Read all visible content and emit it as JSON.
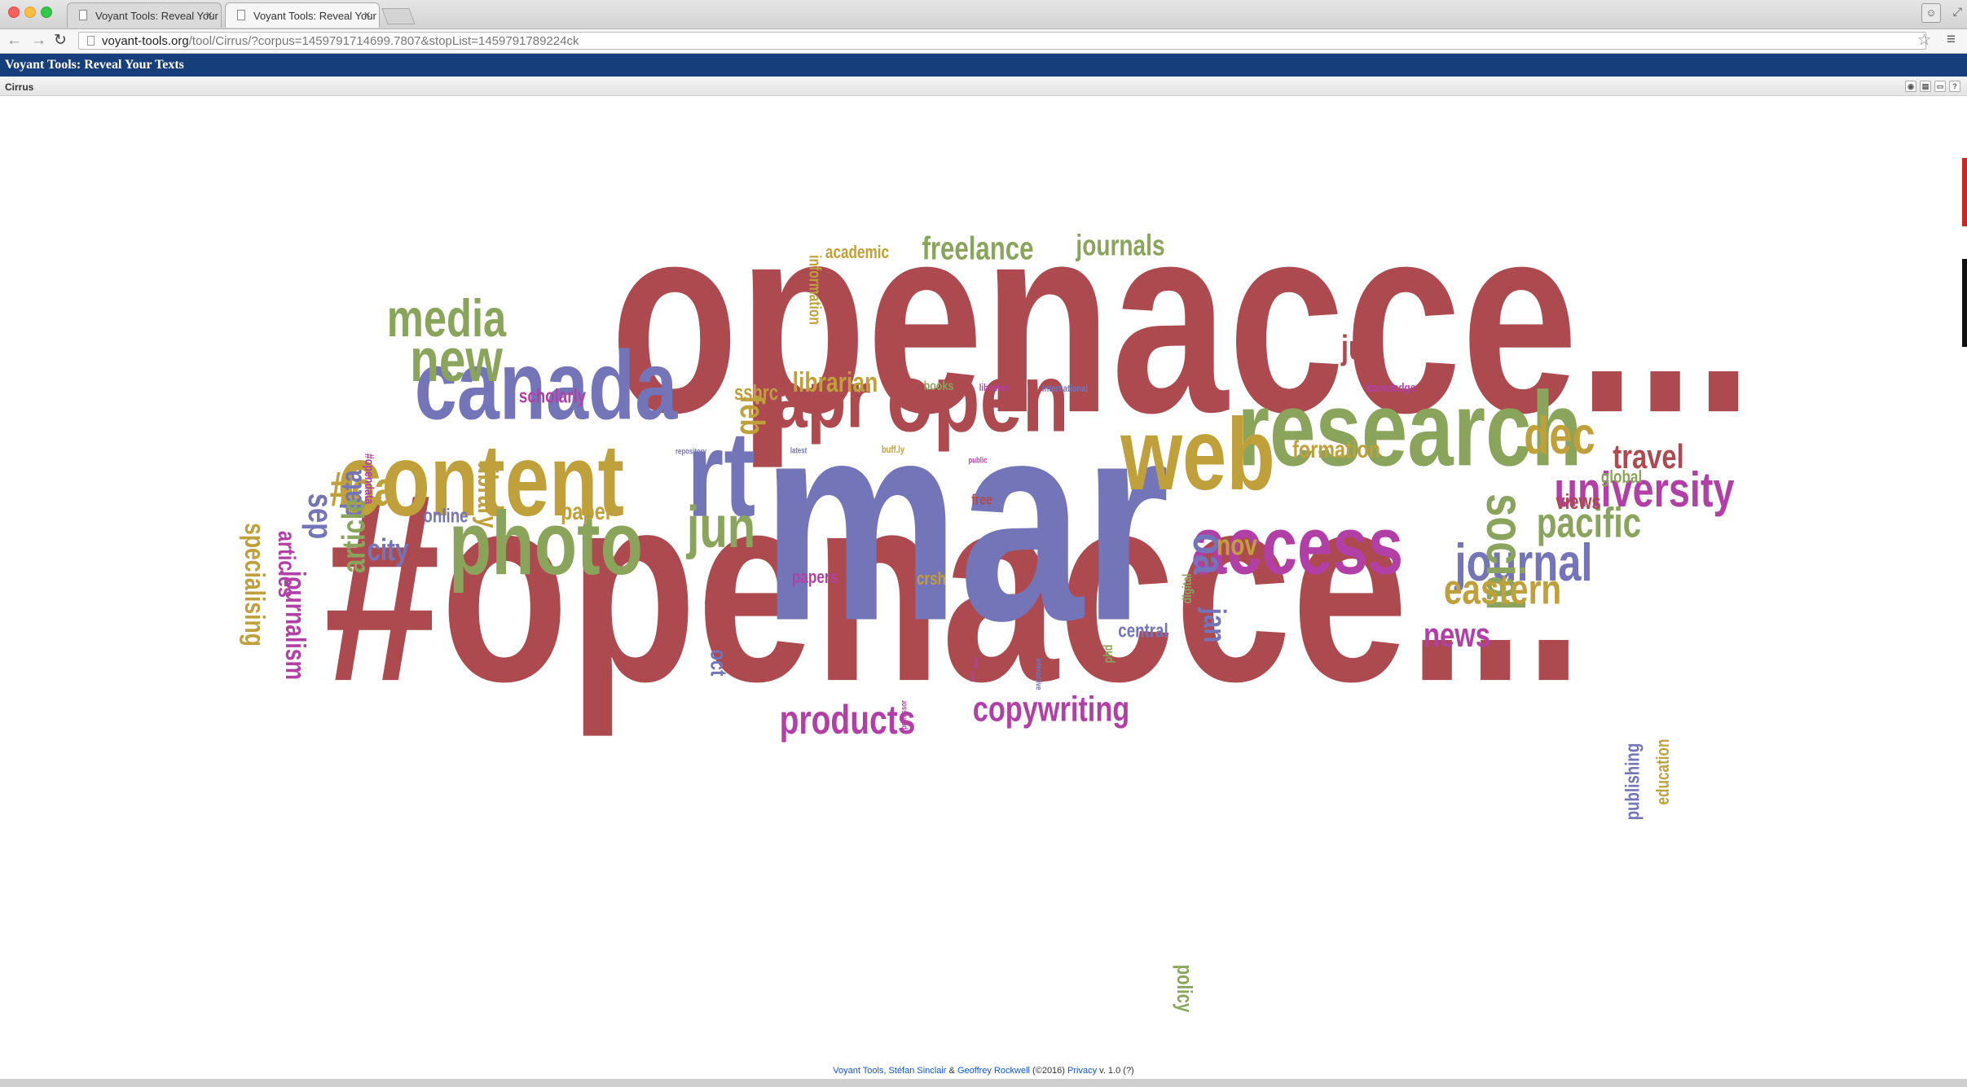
{
  "browser": {
    "tabs": [
      {
        "title": "Voyant Tools: Reveal Your",
        "active": false
      },
      {
        "title": "Voyant Tools: Reveal Your",
        "active": true
      }
    ],
    "url_host": "voyant-tools.org",
    "url_path": "/tool/Cirrus/?corpus=1459791714699.7807&stopList=1459791789224ck",
    "icons": {
      "back": "back-arrow-icon",
      "forward": "forward-arrow-icon",
      "reload": "reload-icon",
      "star": "bookmark-star-icon",
      "menu": "hamburger-menu-icon"
    }
  },
  "app": {
    "header_title": "Voyant Tools: Reveal Your Texts",
    "panel_title": "Cirrus"
  },
  "footer": {
    "part1": "Voyant Tools, ",
    "author1": "Stéfan Sinclair",
    "amp": " & ",
    "author2": "Geoffrey Rockwell",
    "year": " (©2016) ",
    "privacy": "Privacy",
    "version": " v. 1.0 (?)"
  },
  "colors": {
    "red": "#ac4a4f",
    "purple": "#7474b8",
    "green": "#8aa55b",
    "gold": "#c0a03a",
    "magenta": "#b23fa6"
  },
  "words": [
    {
      "text": "openacce...",
      "color": "red",
      "rot": 0
    },
    {
      "text": "#openacce...",
      "color": "red",
      "rot": 0
    },
    {
      "text": "mar",
      "color": "purple",
      "rot": 0
    },
    {
      "text": "research",
      "color": "green",
      "rot": 0
    },
    {
      "text": "web",
      "color": "gold",
      "rot": 0
    },
    {
      "text": "content",
      "color": "gold",
      "rot": 0
    },
    {
      "text": "canada",
      "color": "purple",
      "rot": 0
    },
    {
      "text": "photo",
      "color": "green",
      "rot": 0
    },
    {
      "text": "apr",
      "color": "red",
      "rot": 0
    },
    {
      "text": "open",
      "color": "red",
      "rot": 0
    },
    {
      "text": "access",
      "color": "magenta",
      "rot": 0
    },
    {
      "text": "rt",
      "color": "purple",
      "rot": 0
    },
    {
      "text": "university",
      "color": "magenta",
      "rot": 0
    },
    {
      "text": "journal",
      "color": "purple",
      "rot": 0
    },
    {
      "text": "social",
      "color": "green",
      "rot": 90
    },
    {
      "text": "dec",
      "color": "gold",
      "rot": 0
    },
    {
      "text": "pacific",
      "color": "green",
      "rot": 0
    },
    {
      "text": "eastern",
      "color": "gold",
      "rot": 0
    },
    {
      "text": "new",
      "color": "green",
      "rot": 0
    },
    {
      "text": "media",
      "color": "green",
      "rot": 0
    },
    {
      "text": "jun",
      "color": "green",
      "rot": 0
    },
    {
      "text": "#oa",
      "color": "gold",
      "rot": 0
    },
    {
      "text": "oa",
      "color": "purple",
      "rot": 90
    },
    {
      "text": "products",
      "color": "magenta",
      "rot": 0
    },
    {
      "text": "copywriting",
      "color": "magenta",
      "rot": 0
    },
    {
      "text": "travel",
      "color": "red",
      "rot": 0
    },
    {
      "text": "news",
      "color": "magenta",
      "rot": 0
    },
    {
      "text": "freelance",
      "color": "green",
      "rot": 0
    },
    {
      "text": "journals",
      "color": "green",
      "rot": 0
    },
    {
      "text": "sep",
      "color": "purple",
      "rot": 90
    },
    {
      "text": "city",
      "color": "purple",
      "rot": 0
    },
    {
      "text": "librarian",
      "color": "gold",
      "rot": 0
    },
    {
      "text": "feb",
      "color": "gold",
      "rot": 90
    },
    {
      "text": "jul",
      "color": "red",
      "rot": 0
    },
    {
      "text": "nov",
      "color": "gold",
      "rot": 0
    },
    {
      "text": "formation",
      "color": "gold",
      "rot": 0
    },
    {
      "text": "paper",
      "color": "gold",
      "rot": 0
    },
    {
      "text": "jan",
      "color": "purple",
      "rot": 90
    },
    {
      "text": "views",
      "color": "red",
      "rot": 0
    },
    {
      "text": "data",
      "color": "purple",
      "rot": 270
    },
    {
      "text": "article",
      "color": "green",
      "rot": 270
    },
    {
      "text": "library",
      "color": "gold",
      "rot": 90
    },
    {
      "text": "specialising",
      "color": "gold",
      "rot": 90
    },
    {
      "text": "journalism",
      "color": "magenta",
      "rot": 90
    },
    {
      "text": "articles",
      "color": "magenta",
      "rot": 90
    },
    {
      "text": "scholarly",
      "color": "magenta",
      "rot": 0
    },
    {
      "text": "sshrc",
      "color": "gold",
      "rot": 0
    },
    {
      "text": "aug",
      "color": "red",
      "rot": 90
    },
    {
      "text": "oct",
      "color": "purple",
      "rot": 90
    },
    {
      "text": "online",
      "color": "purple",
      "rot": 0
    },
    {
      "text": "global",
      "color": "green",
      "rot": 0
    },
    {
      "text": "publishing",
      "color": "purple",
      "rot": 270
    },
    {
      "text": "education",
      "color": "gold",
      "rot": 270
    },
    {
      "text": "central",
      "color": "purple",
      "rot": 0
    },
    {
      "text": "policy",
      "color": "green",
      "rot": 90
    },
    {
      "text": "papers",
      "color": "magenta",
      "rot": 0
    },
    {
      "text": "crsh",
      "color": "gold",
      "rot": 0
    },
    {
      "text": "academic",
      "color": "gold",
      "rot": 0
    },
    {
      "text": "information",
      "color": "gold",
      "rot": 90
    },
    {
      "text": "books",
      "color": "green",
      "rot": 0
    },
    {
      "text": "libraries",
      "color": "magenta",
      "rot": 0
    },
    {
      "text": "international",
      "color": "purple",
      "rot": 0
    },
    {
      "text": "knowledge",
      "color": "magenta",
      "rot": 0
    },
    {
      "text": "digital",
      "color": "green",
      "rot": 270
    },
    {
      "text": "phd",
      "color": "green",
      "rot": 270
    },
    {
      "text": "#opendata",
      "color": "magenta",
      "rot": 90
    },
    {
      "text": "repository",
      "color": "purple",
      "rot": 0
    },
    {
      "text": "latest",
      "color": "purple",
      "rot": 0
    },
    {
      "text": "buff.ly",
      "color": "gold",
      "rot": 0
    },
    {
      "text": "public",
      "color": "magenta",
      "rot": 0
    },
    {
      "text": "free",
      "color": "red",
      "rot": 0
    },
    {
      "text": "professor",
      "color": "magenta",
      "rot": 270
    },
    {
      "text": "interactive",
      "color": "purple",
      "rot": 90
    },
    {
      "text": "blog",
      "color": "magenta",
      "rot": 90
    },
    {
      "text": "read",
      "color": "magenta",
      "rot": 90
    }
  ]
}
